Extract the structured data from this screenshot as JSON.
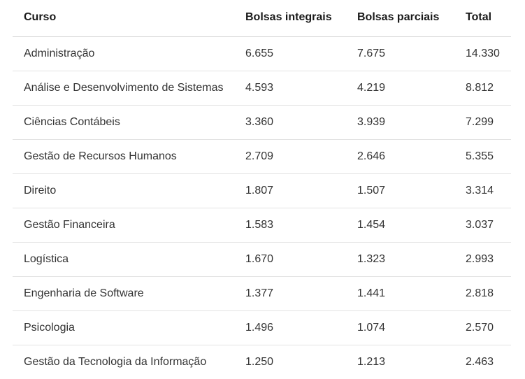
{
  "table": {
    "headers": [
      "Curso",
      "Bolsas integrais",
      "Bolsas parciais",
      "Total"
    ],
    "rows": [
      [
        "Administração",
        "6.655",
        "7.675",
        "14.330"
      ],
      [
        "Análise e Desenvolvimento de Sistemas",
        "4.593",
        "4.219",
        "8.812"
      ],
      [
        "Ciências Contábeis",
        "3.360",
        "3.939",
        "7.299"
      ],
      [
        "Gestão de Recursos Humanos",
        "2.709",
        "2.646",
        "5.355"
      ],
      [
        "Direito",
        "1.807",
        "1.507",
        "3.314"
      ],
      [
        "Gestão Financeira",
        "1.583",
        "1.454",
        "3.037"
      ],
      [
        "Logística",
        "1.670",
        "1.323",
        "2.993"
      ],
      [
        "Engenharia de Software",
        "1.377",
        "1.441",
        "2.818"
      ],
      [
        "Psicologia",
        "1.496",
        "1.074",
        "2.570"
      ],
      [
        "Gestão da Tecnologia da Informação",
        "1.250",
        "1.213",
        "2.463"
      ]
    ]
  }
}
